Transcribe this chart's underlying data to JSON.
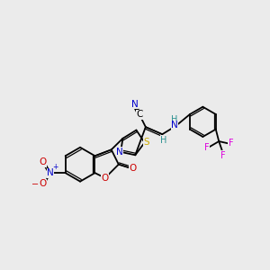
{
  "background_color": "#ebebeb",
  "fig_width": 3.0,
  "fig_height": 3.0,
  "dpi": 100,
  "colors": {
    "C": "#000000",
    "N": "#0000cc",
    "O": "#cc0000",
    "S": "#ccaa00",
    "F": "#dd00dd",
    "H": "#2a9090",
    "bond": "#000000"
  },
  "lw": 1.3,
  "lw_double_inner": 0.9,
  "fs": 7.0
}
